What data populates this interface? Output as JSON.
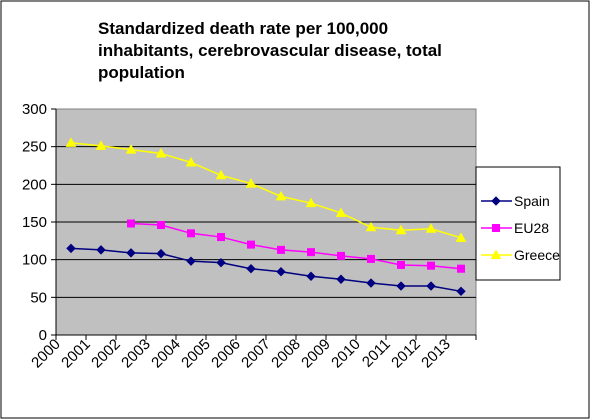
{
  "chart_data": {
    "type": "line",
    "title": [
      "Standardized death rate per 100,000",
      "inhabitants, cerebrovascular disease, total",
      "population"
    ],
    "xlabel": "",
    "ylabel": "",
    "categories": [
      "2000",
      "2001",
      "2002",
      "2003",
      "2004",
      "2005",
      "2006",
      "2007",
      "2008",
      "2009",
      "2010",
      "2011",
      "2012",
      "2013"
    ],
    "ylim": [
      0,
      300
    ],
    "yticks": [
      "0",
      "50",
      "100",
      "150",
      "200",
      "250",
      "300"
    ],
    "grid": true,
    "legend_position": "right",
    "series": [
      {
        "name": "Spain",
        "color": "#000080",
        "marker": "diamond",
        "values": [
          115,
          113,
          109,
          108,
          98,
          96,
          88,
          84,
          78,
          74,
          69,
          65,
          65,
          58
        ]
      },
      {
        "name": "EU28",
        "color": "#ff00ff",
        "marker": "square",
        "values": [
          null,
          null,
          148,
          146,
          135,
          130,
          120,
          113,
          110,
          105,
          101,
          93,
          92,
          88
        ]
      },
      {
        "name": "Greece",
        "color": "#ffff00",
        "marker": "triangle",
        "values": [
          255,
          251,
          246,
          241,
          229,
          212,
          201,
          184,
          175,
          162,
          143,
          139,
          141,
          129
        ]
      }
    ]
  }
}
